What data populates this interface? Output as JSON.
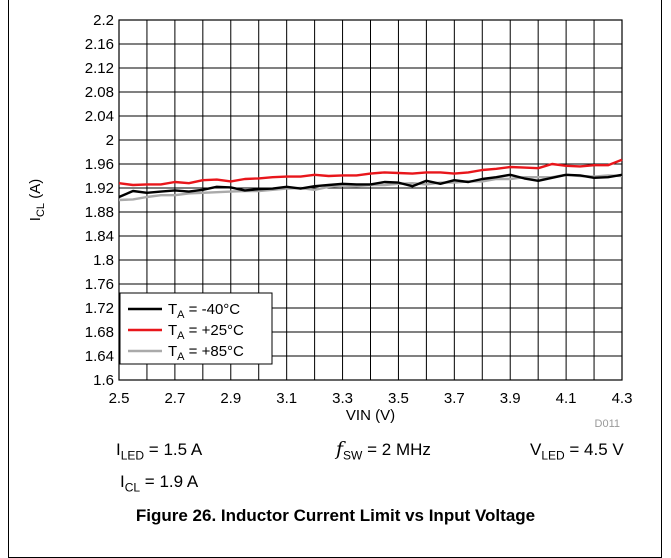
{
  "chart_data": {
    "type": "line",
    "xlabel": "VIN (V)",
    "ylabel_main": "I",
    "ylabel_sub": "CL",
    "ylabel_unit": " (A)",
    "xlim": [
      2.5,
      4.3
    ],
    "ylim": [
      1.6,
      2.2
    ],
    "x_ticks": [
      2.5,
      2.6,
      2.7,
      2.8,
      2.9,
      3.0,
      3.1,
      3.2,
      3.3,
      3.4,
      3.5,
      3.6,
      3.7,
      3.8,
      3.9,
      4.0,
      4.1,
      4.2,
      4.3
    ],
    "x_tick_labels": [
      "2.5",
      "2.7",
      "2.9",
      "3.1",
      "3.3",
      "3.5",
      "3.7",
      "3.9",
      "4.1",
      "4.3"
    ],
    "x_label_values": [
      2.5,
      2.7,
      2.9,
      3.1,
      3.3,
      3.5,
      3.7,
      3.9,
      4.1,
      4.3
    ],
    "y_ticks": [
      1.6,
      1.64,
      1.68,
      1.72,
      1.76,
      1.8,
      1.84,
      1.88,
      1.92,
      1.96,
      2.0,
      2.04,
      2.08,
      2.12,
      2.16,
      2.2
    ],
    "y_tick_labels": [
      "1.6",
      "1.64",
      "1.68",
      "1.72",
      "1.76",
      "1.8",
      "1.84",
      "1.88",
      "1.92",
      "1.96",
      "2",
      "2.04",
      "2.08",
      "2.12",
      "2.16",
      "2.2"
    ],
    "grid": true,
    "legend_position": "bottom-left",
    "watermark": "D011",
    "series": [
      {
        "name": "T_A = -40°C",
        "label_main": "T",
        "label_sub": "A",
        "label_rest": " = -40°C",
        "color": "#000000",
        "x": [
          2.5,
          2.55,
          2.6,
          2.65,
          2.7,
          2.75,
          2.8,
          2.85,
          2.9,
          2.95,
          3.0,
          3.05,
          3.1,
          3.15,
          3.2,
          3.25,
          3.3,
          3.35,
          3.4,
          3.45,
          3.5,
          3.55,
          3.6,
          3.65,
          3.7,
          3.75,
          3.8,
          3.85,
          3.9,
          3.95,
          4.0,
          4.05,
          4.1,
          4.15,
          4.2,
          4.25,
          4.3
        ],
        "y": [
          1.905,
          1.915,
          1.912,
          1.914,
          1.916,
          1.914,
          1.917,
          1.922,
          1.921,
          1.916,
          1.918,
          1.919,
          1.922,
          1.919,
          1.923,
          1.925,
          1.927,
          1.926,
          1.926,
          1.93,
          1.929,
          1.923,
          1.932,
          1.927,
          1.933,
          1.93,
          1.935,
          1.938,
          1.942,
          1.936,
          1.932,
          1.937,
          1.942,
          1.941,
          1.937,
          1.938,
          1.942
        ]
      },
      {
        "name": "T_A = +25°C",
        "label_main": "T",
        "label_sub": "A",
        "label_rest": " = +25°C",
        "color": "#e8161b",
        "x": [
          2.5,
          2.55,
          2.6,
          2.65,
          2.7,
          2.75,
          2.8,
          2.85,
          2.9,
          2.95,
          3.0,
          3.05,
          3.1,
          3.15,
          3.2,
          3.25,
          3.3,
          3.35,
          3.4,
          3.45,
          3.5,
          3.55,
          3.6,
          3.65,
          3.7,
          3.75,
          3.8,
          3.85,
          3.9,
          3.95,
          4.0,
          4.05,
          4.1,
          4.15,
          4.2,
          4.25,
          4.3
        ],
        "y": [
          1.928,
          1.925,
          1.926,
          1.926,
          1.93,
          1.928,
          1.933,
          1.934,
          1.931,
          1.935,
          1.936,
          1.938,
          1.939,
          1.939,
          1.942,
          1.94,
          1.941,
          1.941,
          1.944,
          1.946,
          1.945,
          1.944,
          1.946,
          1.946,
          1.944,
          1.946,
          1.95,
          1.952,
          1.955,
          1.954,
          1.953,
          1.96,
          1.957,
          1.956,
          1.958,
          1.958,
          1.967
        ]
      },
      {
        "name": "T_A = +85°C",
        "label_main": "T",
        "label_sub": "A",
        "label_rest": " = +85°C",
        "color": "#aaaaaa",
        "x": [
          2.5,
          2.55,
          2.6,
          2.65,
          2.7,
          2.75,
          2.8,
          2.85,
          2.9,
          2.95,
          3.0,
          3.05,
          3.1,
          3.15,
          3.2,
          3.25,
          3.3,
          3.35,
          3.4,
          3.45,
          3.5,
          3.55,
          3.6,
          3.65,
          3.7,
          3.75,
          3.8,
          3.85,
          3.9,
          3.95,
          4.0,
          4.05,
          4.1,
          4.15,
          4.2,
          4.25,
          4.3
        ],
        "y": [
          1.9,
          1.901,
          1.905,
          1.908,
          1.908,
          1.911,
          1.912,
          1.913,
          1.914,
          1.915,
          1.915,
          1.917,
          1.919,
          1.92,
          1.917,
          1.922,
          1.924,
          1.923,
          1.925,
          1.925,
          1.927,
          1.928,
          1.926,
          1.929,
          1.929,
          1.931,
          1.931,
          1.935,
          1.935,
          1.938,
          1.938,
          1.938,
          1.942,
          1.94,
          1.939,
          1.941,
          1.94
        ]
      }
    ]
  },
  "conditions": {
    "iled_main": "I",
    "iled_sub": "LED",
    "iled_rest": " = 1.5 A",
    "fsw_main": "f",
    "fsw_sub": "SW",
    "fsw_rest": " = 2 MHz",
    "vled_main": "V",
    "vled_sub": "LED",
    "vled_rest": " = 4.5 V",
    "icl_main": "I",
    "icl_sub": "CL",
    "icl_rest": " = 1.9 A"
  },
  "caption": "Figure 26. Inductor Current Limit vs Input Voltage"
}
